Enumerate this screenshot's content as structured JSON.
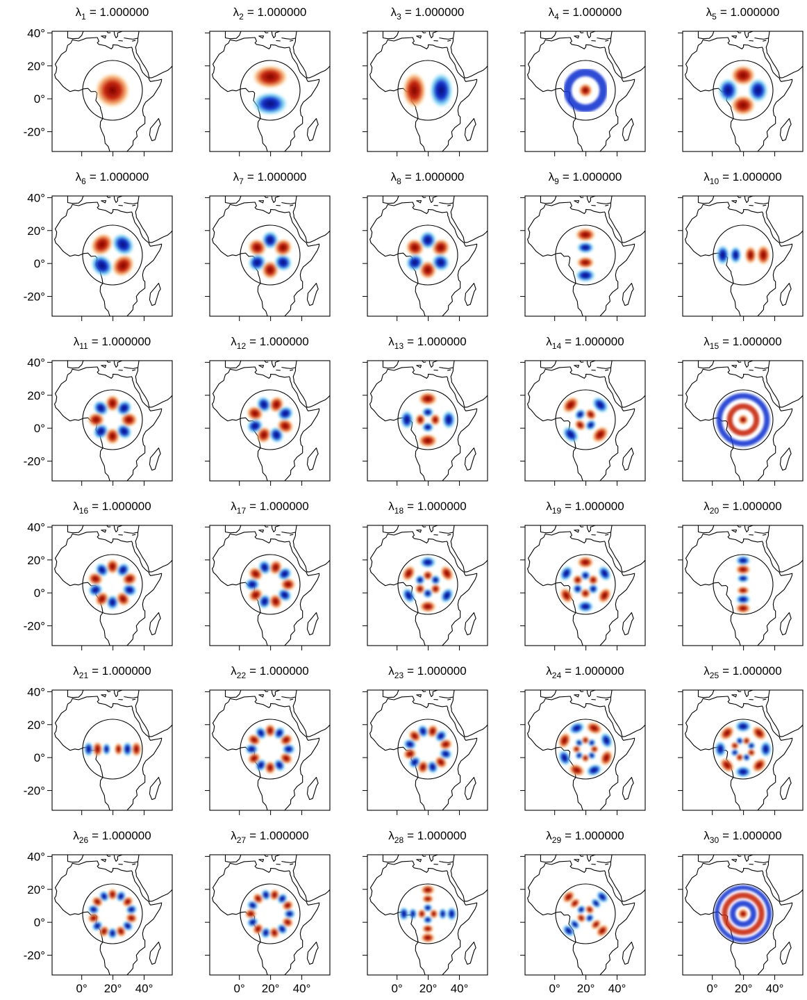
{
  "chart_data": {
    "type": "map-grid",
    "xlim": [
      -19,
      58
    ],
    "ylim": [
      -32,
      41
    ],
    "xticks": [
      {
        "value": 0,
        "label": "0°"
      },
      {
        "value": 20,
        "label": "20°"
      },
      {
        "value": 40,
        "label": "40°"
      }
    ],
    "yticks": [
      {
        "value": -20,
        "label": "-20°"
      },
      {
        "value": 0,
        "label": "0°"
      },
      {
        "value": 20,
        "label": "20°"
      },
      {
        "value": 40,
        "label": "40°"
      }
    ],
    "panels": [
      {
        "title": {
          "symbol": "λ",
          "subscript": "1",
          "text": "= 1.000000"
        }
      },
      {
        "title": {
          "symbol": "λ",
          "subscript": "2",
          "text": "= 1.000000"
        }
      },
      {
        "title": {
          "symbol": "λ",
          "subscript": "3",
          "text": "= 1.000000"
        }
      },
      {
        "title": {
          "symbol": "λ",
          "subscript": "4",
          "text": "= 1.000000"
        }
      },
      {
        "title": {
          "symbol": "λ",
          "subscript": "5",
          "text": "= 1.000000"
        }
      },
      {
        "title": {
          "symbol": "λ",
          "subscript": "6",
          "text": "= 1.000000"
        }
      },
      {
        "title": {
          "symbol": "λ",
          "subscript": "7",
          "text": "= 1.000000"
        }
      },
      {
        "title": {
          "symbol": "λ",
          "subscript": "8",
          "text": "= 1.000000"
        }
      },
      {
        "title": {
          "symbol": "λ",
          "subscript": "9",
          "text": "= 1.000000"
        }
      },
      {
        "title": {
          "symbol": "λ",
          "subscript": "10",
          "text": "= 1.000000"
        }
      },
      {
        "title": {
          "symbol": "λ",
          "subscript": "11",
          "text": "= 1.000000"
        }
      },
      {
        "title": {
          "symbol": "λ",
          "subscript": "12",
          "text": "= 1.000000"
        }
      },
      {
        "title": {
          "symbol": "λ",
          "subscript": "13",
          "text": "= 1.000000"
        }
      },
      {
        "title": {
          "symbol": "λ",
          "subscript": "14",
          "text": "= 1.000000"
        }
      },
      {
        "title": {
          "symbol": "λ",
          "subscript": "15",
          "text": "= 1.000000"
        }
      },
      {
        "title": {
          "symbol": "λ",
          "subscript": "16",
          "text": "= 1.000000"
        }
      },
      {
        "title": {
          "symbol": "λ",
          "subscript": "17",
          "text": "= 1.000000"
        }
      },
      {
        "title": {
          "symbol": "λ",
          "subscript": "18",
          "text": "= 1.000000"
        }
      },
      {
        "title": {
          "symbol": "λ",
          "subscript": "19",
          "text": "= 1.000000"
        }
      },
      {
        "title": {
          "symbol": "λ",
          "subscript": "20",
          "text": "= 1.000000"
        }
      },
      {
        "title": {
          "symbol": "λ",
          "subscript": "21",
          "text": "= 1.000000"
        }
      },
      {
        "title": {
          "symbol": "λ",
          "subscript": "22",
          "text": "= 1.000000"
        }
      },
      {
        "title": {
          "symbol": "λ",
          "subscript": "23",
          "text": "= 1.000000"
        }
      },
      {
        "title": {
          "symbol": "λ",
          "subscript": "24",
          "text": "= 1.000000"
        }
      },
      {
        "title": {
          "symbol": "λ",
          "subscript": "25",
          "text": "= 1.000000"
        }
      },
      {
        "title": {
          "symbol": "λ",
          "subscript": "26",
          "text": "= 1.000000"
        }
      },
      {
        "title": {
          "symbol": "λ",
          "subscript": "27",
          "text": "= 1.000000"
        }
      },
      {
        "title": {
          "symbol": "λ",
          "subscript": "28",
          "text": "= 1.000000"
        }
      },
      {
        "title": {
          "symbol": "λ",
          "subscript": "29",
          "text": "= 1.000000"
        }
      },
      {
        "title": {
          "symbol": "λ",
          "subscript": "30",
          "text": "= 1.000000"
        }
      }
    ]
  }
}
